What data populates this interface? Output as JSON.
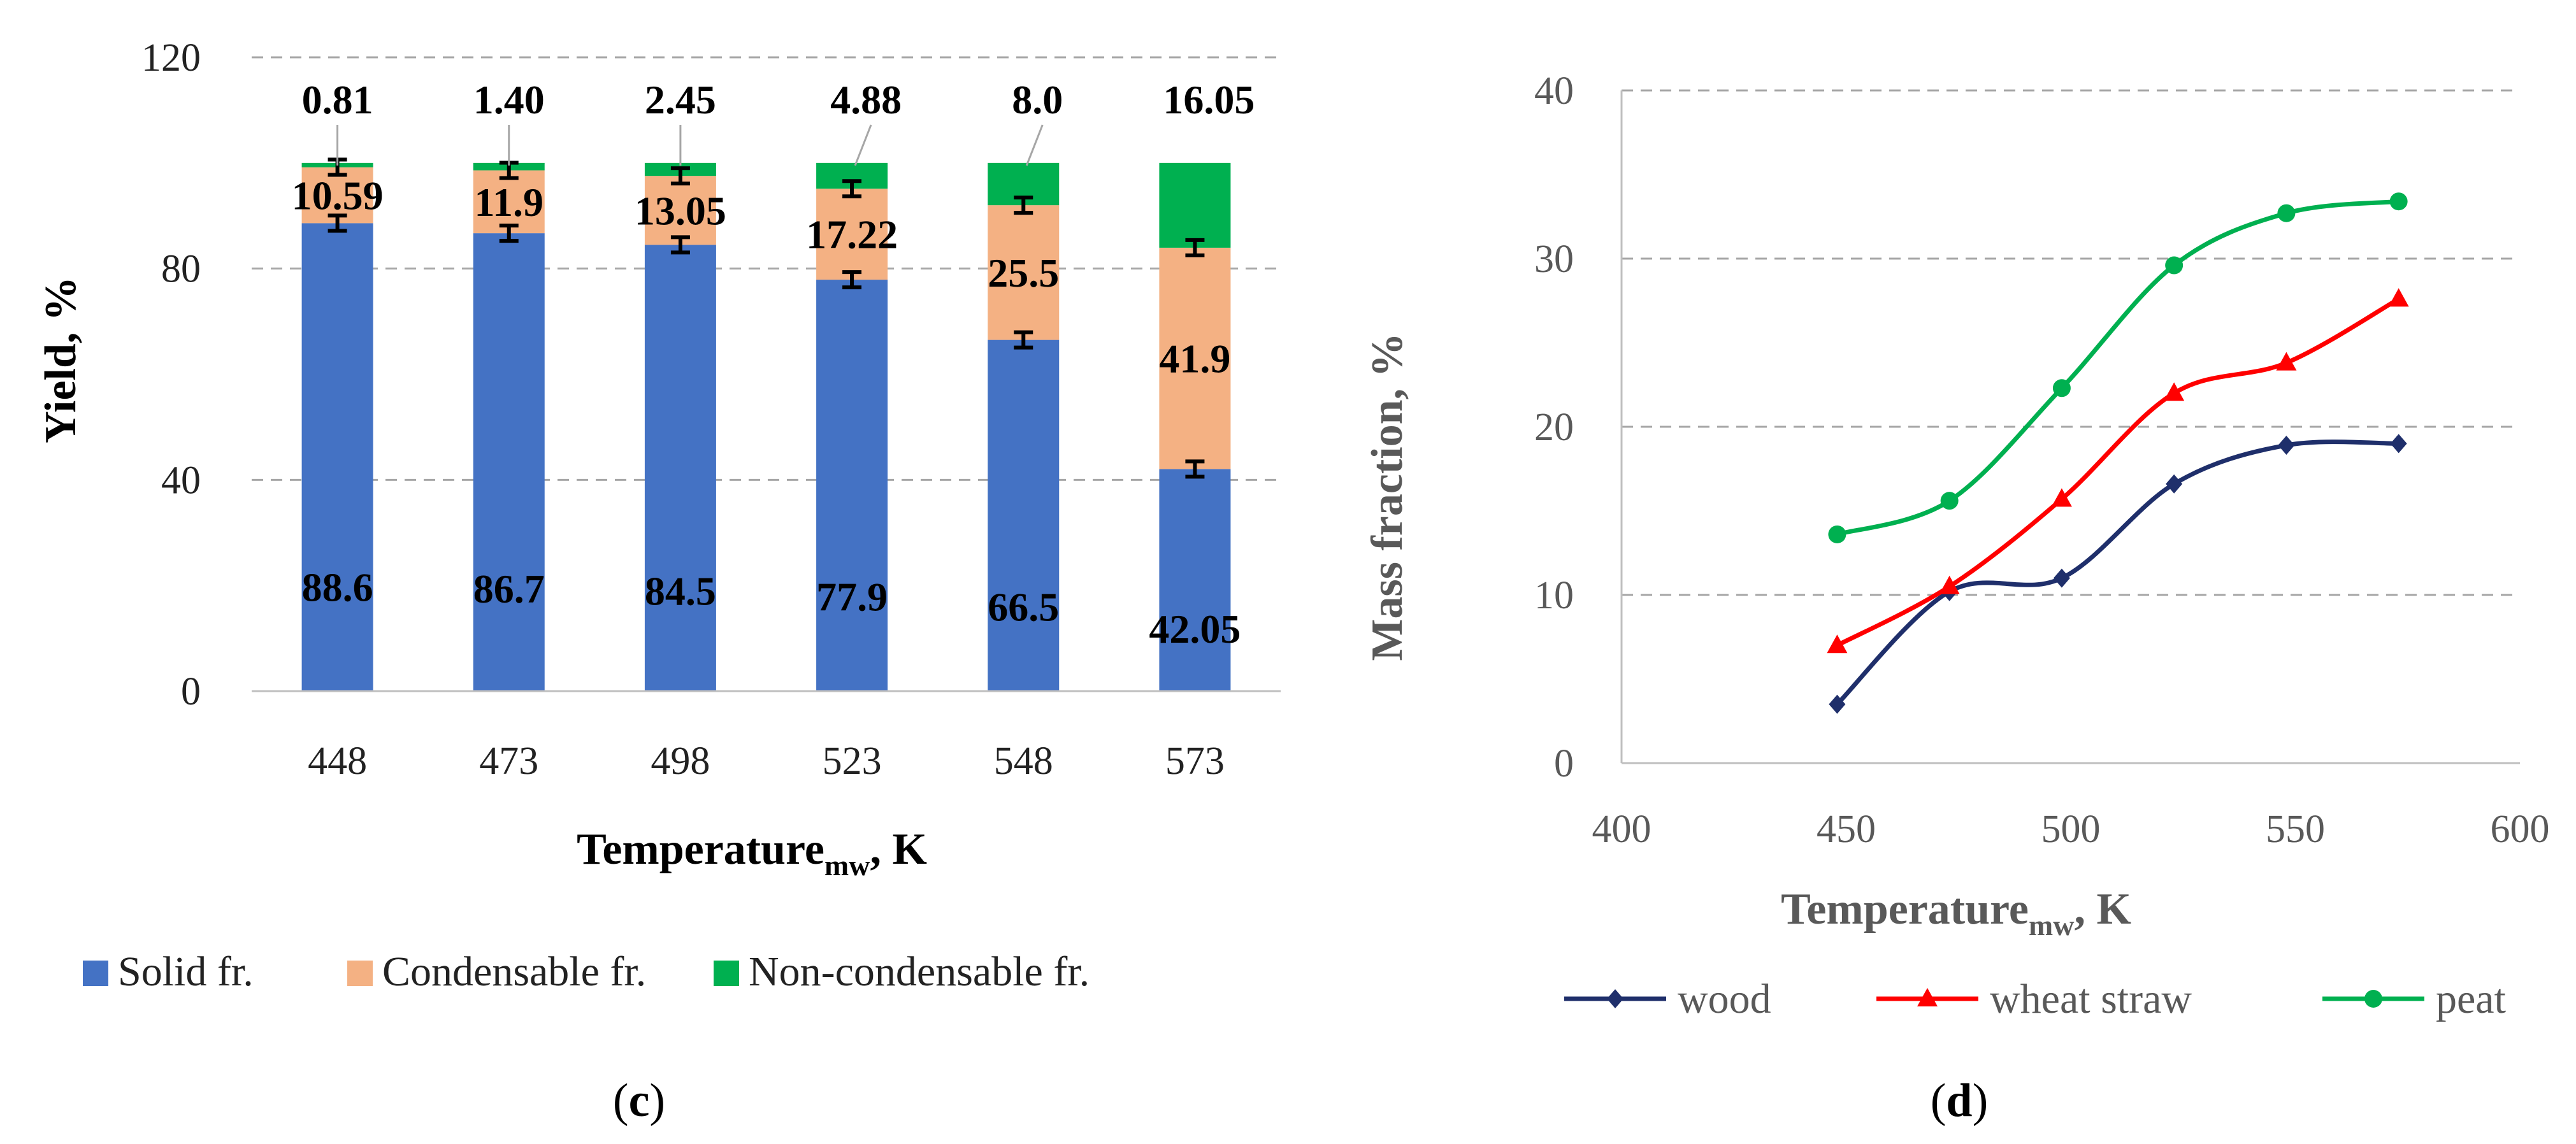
{
  "panels": {
    "c": {
      "label": "(c)",
      "bold": "c"
    },
    "d": {
      "label": "(d)",
      "bold": "d"
    }
  },
  "chart_data": [
    {
      "type": "bar",
      "stacked": true,
      "panel": "(c)",
      "categories": [
        "448",
        "473",
        "498",
        "523",
        "548",
        "573"
      ],
      "ylabel": "Yield, %",
      "xlabel_main": "Temperature",
      "xlabel_sub": "mw",
      "xlabel_tail": ", K",
      "ylim": [
        0,
        120
      ],
      "yticks": [
        "0",
        "40",
        "80",
        "120"
      ],
      "grid": true,
      "legend_position": "bottom",
      "series": [
        {
          "name": "Solid fr.",
          "color": "#4472C4",
          "values": [
            88.6,
            86.7,
            84.5,
            77.9,
            66.5,
            42.05
          ],
          "labels": [
            "88.6",
            "86.7",
            "84.5",
            "77.9",
            "66.5",
            "42.05"
          ]
        },
        {
          "name": "Condensable fr.",
          "color": "#F4B183",
          "values": [
            10.59,
            11.9,
            13.05,
            17.22,
            25.5,
            41.9
          ],
          "labels": [
            "10.59",
            "11.9",
            "13.05",
            "17.22",
            "25.5",
            "41.9"
          ]
        },
        {
          "name": "Non-condensable fr.",
          "color": "#00B050",
          "values": [
            0.81,
            1.4,
            2.45,
            4.88,
            8.0,
            16.05
          ],
          "labels": [
            "0.81",
            "1.40",
            "2.45",
            "4.88",
            "8.0",
            "16.05"
          ]
        }
      ]
    },
    {
      "type": "line",
      "panel": "(d)",
      "ylabel": "Mass fraction, %",
      "xlabel_main": "Temperature",
      "xlabel_sub": "mw",
      "xlabel_tail": ", K",
      "xlim": [
        400,
        600
      ],
      "ylim": [
        0,
        40
      ],
      "xticks": [
        "400",
        "450",
        "500",
        "550",
        "600"
      ],
      "yticks": [
        "0",
        "10",
        "20",
        "30",
        "40"
      ],
      "grid": true,
      "legend_position": "bottom",
      "x": [
        448,
        473,
        498,
        523,
        548,
        573
      ],
      "series": [
        {
          "name": "wood",
          "color": "#1F2F6B",
          "marker": "diamond",
          "values": [
            3.5,
            10.2,
            11.0,
            16.6,
            18.9,
            19.0
          ]
        },
        {
          "name": "wheat straw",
          "color": "#FF0000",
          "marker": "triangle",
          "values": [
            7.0,
            10.5,
            15.7,
            22.0,
            23.8,
            27.6
          ]
        },
        {
          "name": "peat",
          "color": "#00B050",
          "marker": "circle",
          "values": [
            13.6,
            15.6,
            22.3,
            29.6,
            32.7,
            33.4
          ]
        }
      ]
    }
  ]
}
